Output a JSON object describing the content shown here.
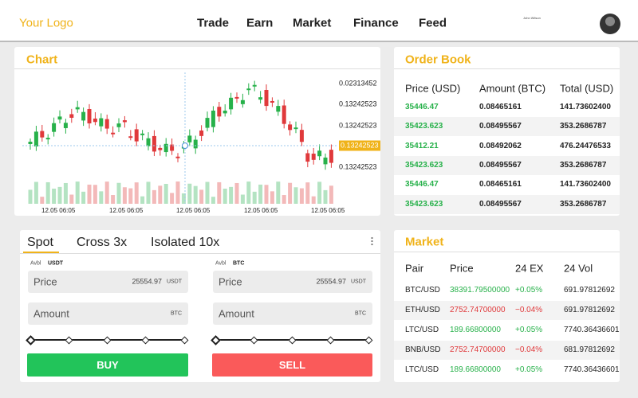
{
  "header": {
    "logo": "Your Logo",
    "nav": [
      "Trade",
      "Earn",
      "Market",
      "Finance",
      "Feed"
    ],
    "user_name": "John Wilson"
  },
  "chart": {
    "title": "Chart",
    "price_labels": [
      "0.02313452",
      "0.13242523",
      "0.13242523",
      "0.13242523",
      "0.13242523"
    ],
    "time_labels": [
      "12.05 06:05",
      "12.05 06:05",
      "12.05 06:05",
      "12.05 06:05",
      "12.05 06:05"
    ]
  },
  "order_book": {
    "title": "Order Book",
    "columns": [
      "Price (USD)",
      "Amount (BTC)",
      "Total (USD)"
    ],
    "rows": [
      [
        "35446.47",
        "0.08465161",
        "141.73602400"
      ],
      [
        "35423.623",
        "0.08495567",
        "353.2686787"
      ],
      [
        "35412.21",
        "0.08492062",
        "476.24476533"
      ],
      [
        "35423.623",
        "0.08495567",
        "353.2686787"
      ],
      [
        "35446.47",
        "0.08465161",
        "141.73602400"
      ],
      [
        "35423.623",
        "0.08495567",
        "353.2686787"
      ]
    ]
  },
  "trade": {
    "tabs": [
      "Spot",
      "Cross 3x",
      "Isolated 10x"
    ],
    "buy": {
      "available_label": "Avbl",
      "currency": "USDT",
      "price_label": "Price",
      "price_value": "25554.97",
      "price_unit": "USDT",
      "amount_label": "Amount",
      "amount_unit": "BTC",
      "button": "BUY"
    },
    "sell": {
      "available_label": "Avbl",
      "currency": "BTC",
      "price_label": "Price",
      "price_value": "25554.97",
      "price_unit": "USDT",
      "amount_label": "Amount",
      "amount_unit": "BTC",
      "button": "SELL"
    }
  },
  "market": {
    "title": "Market",
    "columns": [
      "Pair",
      "Price",
      "24 EX",
      "24 Vol"
    ],
    "rows": [
      [
        "BTC/USD",
        "38391.79500000",
        "+0.05%",
        "691.97812692"
      ],
      [
        "ETH/USD",
        "2752.74700000",
        "−0.04%",
        "691.97812692"
      ],
      [
        "LTC/USD",
        "189.66800000",
        "+0.05%",
        "7740.36436601"
      ],
      [
        "BNB/USD",
        "2752.74700000",
        "−0.04%",
        "681.97812692"
      ],
      [
        "LTC/USD",
        "189.66800000",
        "+0.05%",
        "7740.36436601"
      ]
    ]
  }
}
